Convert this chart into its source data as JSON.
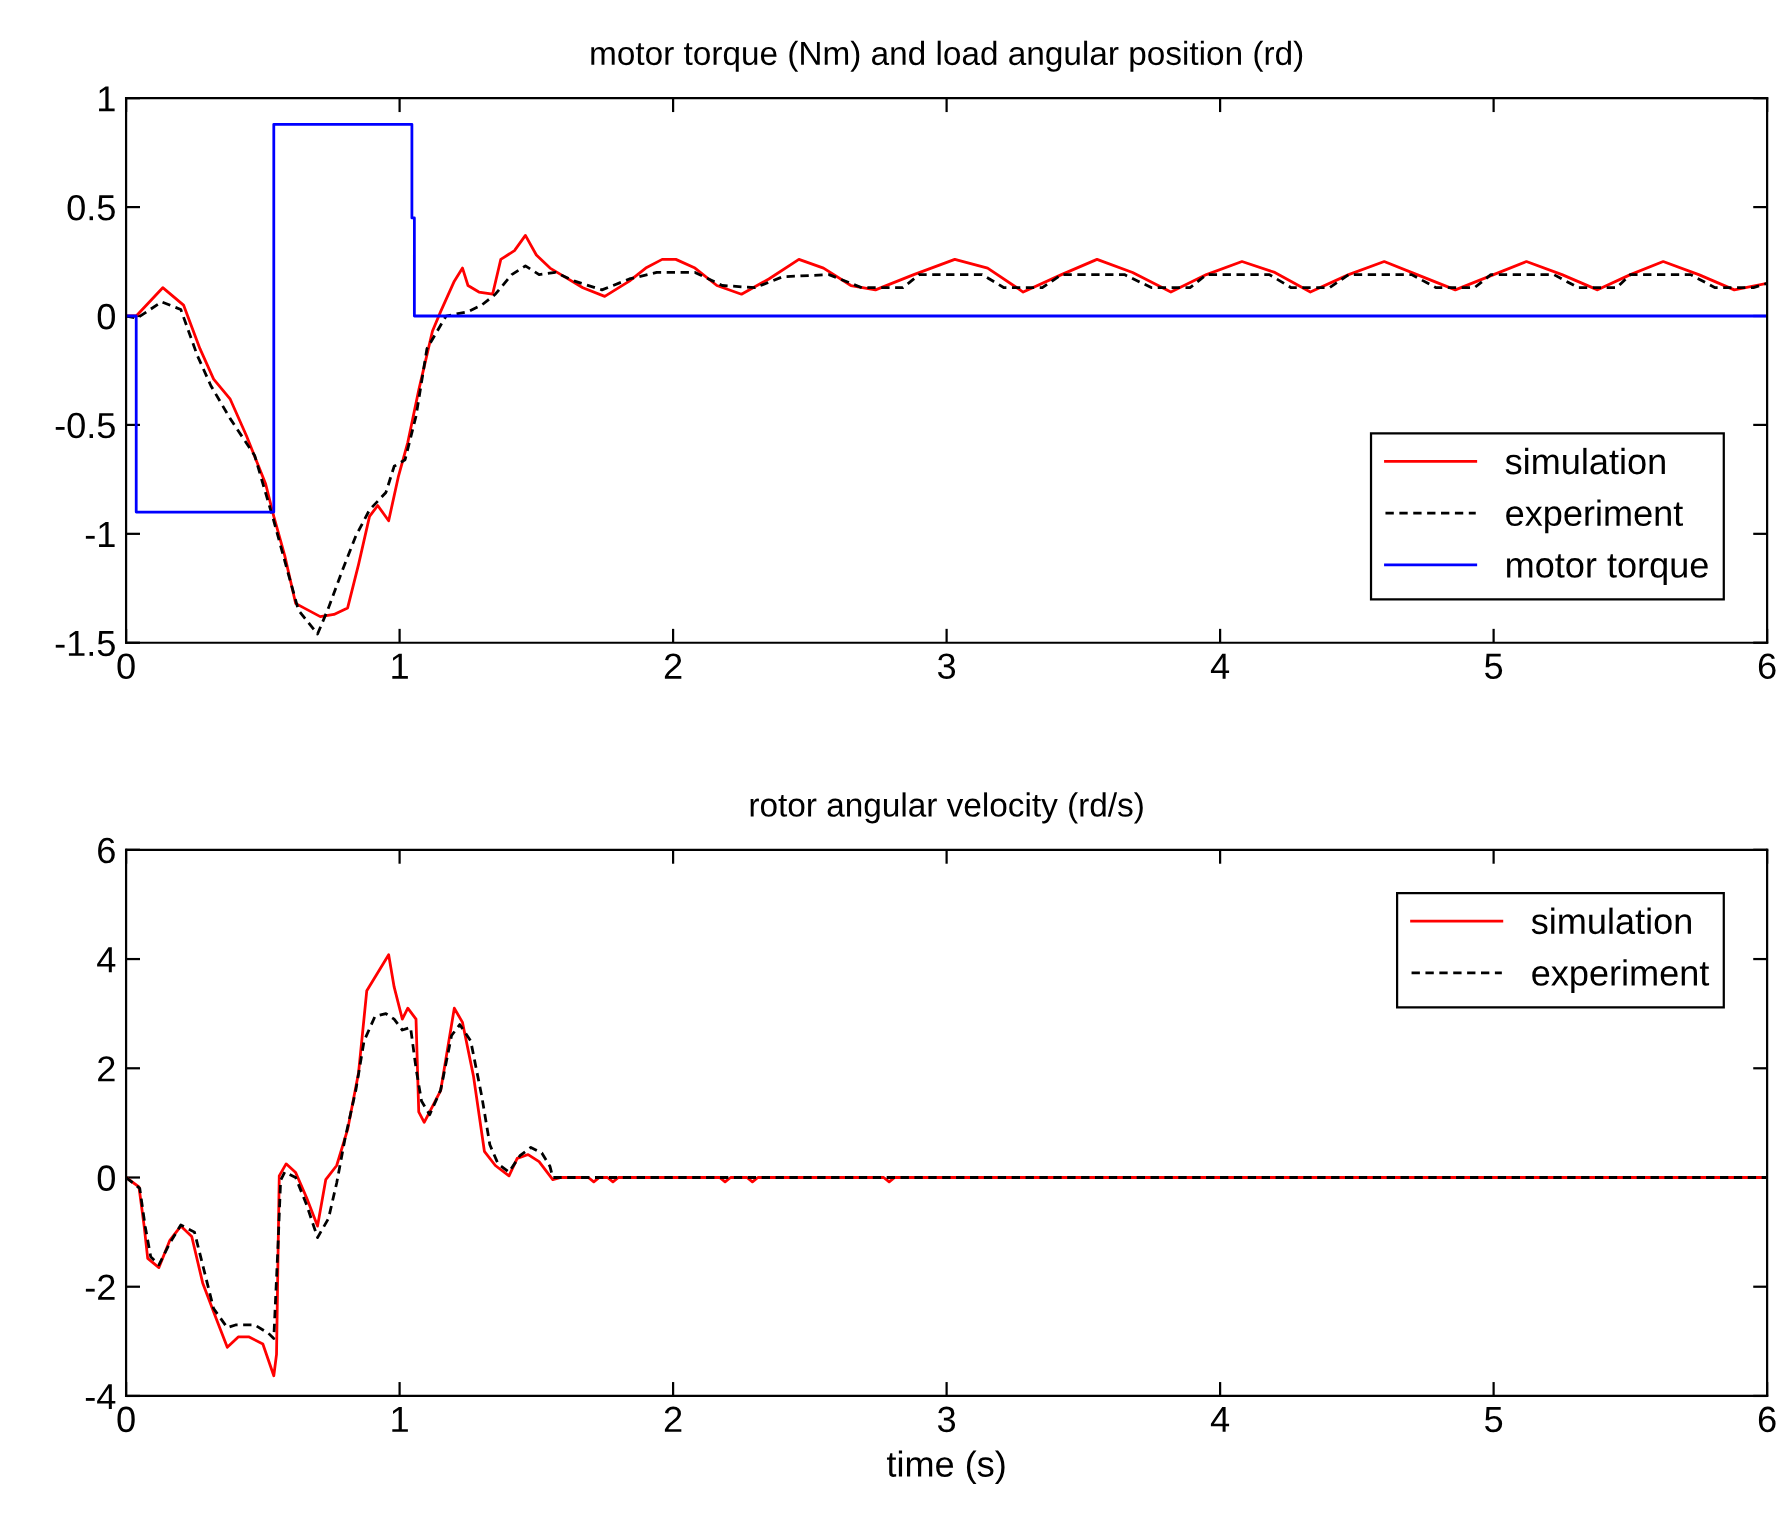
{
  "chart_data": [
    {
      "type": "line",
      "title": "motor torque (Nm) and load angular position (rd)",
      "xlim": [
        0,
        6
      ],
      "xticks": [
        0,
        1,
        2,
        3,
        4,
        5,
        6
      ],
      "ylim": [
        -1.5,
        1
      ],
      "yticks": [
        -1.5,
        -1,
        -0.5,
        0,
        0.5,
        1
      ],
      "grid": false,
      "legend": "bottom right",
      "series": [
        {
          "name": "simulation",
          "color": "#ff0000",
          "line_style": "solid",
          "x": [
            0,
            0.037,
            0.134,
            0.21,
            0.27,
            0.32,
            0.38,
            0.44,
            0.51,
            0.54,
            0.58,
            0.62,
            0.65,
            0.71,
            0.76,
            0.81,
            0.85,
            0.89,
            0.92,
            0.96,
            0.995,
            1.03,
            1.07,
            1.12,
            1.15,
            1.2,
            1.23,
            1.25,
            1.29,
            1.34,
            1.37,
            1.42,
            1.46,
            1.5,
            1.55,
            1.59,
            1.67,
            1.75,
            1.84,
            1.9,
            1.96,
            2.01,
            2.08,
            2.16,
            2.25,
            2.35,
            2.46,
            2.55,
            2.65,
            2.74,
            2.88,
            3.03,
            3.15,
            3.28,
            3.42,
            3.55,
            3.68,
            3.82,
            3.95,
            4.08,
            4.2,
            4.33,
            4.47,
            4.6,
            4.72,
            4.86,
            5.0,
            5.12,
            5.25,
            5.38,
            5.5,
            5.62,
            5.75,
            5.88,
            6.0
          ],
          "values": [
            0,
            0,
            0.13,
            0.05,
            -0.15,
            -0.29,
            -0.38,
            -0.55,
            -0.77,
            -0.92,
            -1.1,
            -1.32,
            -1.34,
            -1.38,
            -1.37,
            -1.34,
            -1.14,
            -0.92,
            -0.87,
            -0.94,
            -0.74,
            -0.58,
            -0.34,
            -0.07,
            0.02,
            0.16,
            0.22,
            0.14,
            0.11,
            0.1,
            0.26,
            0.3,
            0.37,
            0.28,
            0.22,
            0.19,
            0.13,
            0.09,
            0.16,
            0.22,
            0.26,
            0.26,
            0.22,
            0.14,
            0.1,
            0.17,
            0.26,
            0.22,
            0.14,
            0.12,
            0.19,
            0.26,
            0.22,
            0.11,
            0.19,
            0.26,
            0.2,
            0.11,
            0.19,
            0.25,
            0.2,
            0.11,
            0.19,
            0.25,
            0.19,
            0.12,
            0.19,
            0.25,
            0.19,
            0.12,
            0.19,
            0.25,
            0.19,
            0.12,
            0.15
          ]
        },
        {
          "name": "experiment",
          "color": "#000000",
          "line_style": "dashed",
          "x": [
            0,
            0.04,
            0.13,
            0.2,
            0.26,
            0.31,
            0.38,
            0.47,
            0.54,
            0.59,
            0.63,
            0.7,
            0.74,
            0.79,
            0.84,
            0.89,
            0.95,
            0.98,
            1.02,
            1.06,
            1.1,
            1.17,
            1.25,
            1.3,
            1.35,
            1.41,
            1.46,
            1.51,
            1.57,
            1.64,
            1.74,
            1.84,
            1.94,
            2.08,
            2.18,
            2.3,
            2.4,
            2.57,
            2.69,
            2.84,
            2.9,
            3.13,
            3.21,
            3.35,
            3.42,
            3.65,
            3.75,
            3.89,
            3.95,
            4.18,
            4.26,
            4.4,
            4.47,
            4.7,
            4.79,
            4.93,
            4.99,
            5.22,
            5.31,
            5.45,
            5.5,
            5.72,
            5.81,
            5.95,
            6.0
          ],
          "values": [
            0,
            -0.01,
            0.065,
            0.03,
            -0.18,
            -0.32,
            -0.47,
            -0.64,
            -0.94,
            -1.17,
            -1.35,
            -1.46,
            -1.34,
            -1.17,
            -1.01,
            -0.89,
            -0.81,
            -0.69,
            -0.66,
            -0.46,
            -0.15,
            0.0,
            0.02,
            0.05,
            0.1,
            0.19,
            0.23,
            0.19,
            0.2,
            0.16,
            0.12,
            0.17,
            0.2,
            0.2,
            0.14,
            0.13,
            0.18,
            0.19,
            0.13,
            0.13,
            0.19,
            0.19,
            0.13,
            0.13,
            0.19,
            0.19,
            0.13,
            0.13,
            0.19,
            0.19,
            0.13,
            0.13,
            0.19,
            0.19,
            0.13,
            0.13,
            0.19,
            0.19,
            0.13,
            0.13,
            0.19,
            0.19,
            0.13,
            0.13,
            0.15
          ]
        },
        {
          "name": "motor torque",
          "type": "step",
          "color": "#0000ff",
          "line_style": "solid",
          "x": [
            0,
            0.037,
            0.54,
            1.045,
            1.054,
            6
          ],
          "values": [
            0,
            -0.9,
            0.88,
            0.45,
            0,
            0
          ]
        }
      ]
    },
    {
      "type": "line",
      "title": "rotor angular velocity (rd/s)",
      "xlabel": "time (s)",
      "xlim": [
        0,
        6
      ],
      "xticks": [
        0,
        1,
        2,
        3,
        4,
        5,
        6
      ],
      "ylim": [
        -4,
        6
      ],
      "yticks": [
        -4,
        -2,
        0,
        2,
        4,
        6
      ],
      "grid": false,
      "legend": "top right",
      "series": [
        {
          "name": "simulation",
          "color": "#ff0000",
          "line_style": "solid",
          "x": [
            0,
            0.047,
            0.066,
            0.079,
            0.12,
            0.16,
            0.2,
            0.24,
            0.28,
            0.33,
            0.37,
            0.41,
            0.45,
            0.5,
            0.54,
            0.55,
            0.56,
            0.585,
            0.62,
            0.66,
            0.7,
            0.73,
            0.77,
            0.81,
            0.85,
            0.88,
            0.92,
            0.96,
            0.98,
            1.01,
            1.03,
            1.06,
            1.07,
            1.09,
            1.15,
            1.2,
            1.23,
            1.27,
            1.31,
            1.35,
            1.4,
            1.43,
            1.47,
            1.51,
            1.56,
            1.59,
            1.69,
            1.71,
            1.73,
            1.76,
            1.78,
            1.8,
            2.17,
            2.19,
            2.21,
            2.27,
            2.29,
            2.31,
            2.77,
            2.79,
            2.81,
            6
          ],
          "values": [
            0,
            -0.17,
            -0.89,
            -1.48,
            -1.65,
            -1.15,
            -0.89,
            -1.08,
            -1.93,
            -2.59,
            -3.11,
            -2.92,
            -2.92,
            -3.05,
            -3.63,
            -3.24,
            0.03,
            0.25,
            0.09,
            -0.37,
            -0.89,
            -0.04,
            0.22,
            0.88,
            1.92,
            3.42,
            3.75,
            4.08,
            3.49,
            2.9,
            3.1,
            2.9,
            1.2,
            1.01,
            1.59,
            3.1,
            2.84,
            1.86,
            0.48,
            0.22,
            0.03,
            0.35,
            0.42,
            0.29,
            -0.04,
            0,
            0,
            -0.08,
            0,
            0,
            -0.08,
            0,
            0,
            -0.08,
            0,
            0,
            -0.08,
            0,
            0,
            -0.08,
            0,
            0
          ]
        },
        {
          "name": "experiment",
          "color": "#000000",
          "line_style": "dashed",
          "x": [
            0,
            0.05,
            0.07,
            0.09,
            0.12,
            0.16,
            0.2,
            0.25,
            0.29,
            0.32,
            0.37,
            0.4,
            0.47,
            0.52,
            0.54,
            0.555,
            0.565,
            0.58,
            0.62,
            0.66,
            0.7,
            0.74,
            0.77,
            0.8,
            0.84,
            0.87,
            0.91,
            0.95,
            0.98,
            1.01,
            1.04,
            1.06,
            1.08,
            1.11,
            1.15,
            1.19,
            1.22,
            1.26,
            1.3,
            1.33,
            1.36,
            1.4,
            1.44,
            1.48,
            1.52,
            1.55,
            1.56,
            6
          ],
          "values": [
            0,
            -0.2,
            -0.9,
            -1.45,
            -1.6,
            -1.2,
            -0.87,
            -1.0,
            -1.8,
            -2.4,
            -2.75,
            -2.7,
            -2.7,
            -2.85,
            -2.95,
            -1.3,
            -0.05,
            0.1,
            0.0,
            -0.5,
            -1.1,
            -0.75,
            -0.1,
            0.7,
            1.6,
            2.5,
            2.95,
            3.0,
            2.9,
            2.7,
            2.75,
            2.0,
            1.4,
            1.15,
            1.6,
            2.6,
            2.8,
            2.5,
            1.5,
            0.6,
            0.25,
            0.1,
            0.4,
            0.55,
            0.45,
            0.2,
            0,
            0
          ]
        }
      ]
    }
  ]
}
